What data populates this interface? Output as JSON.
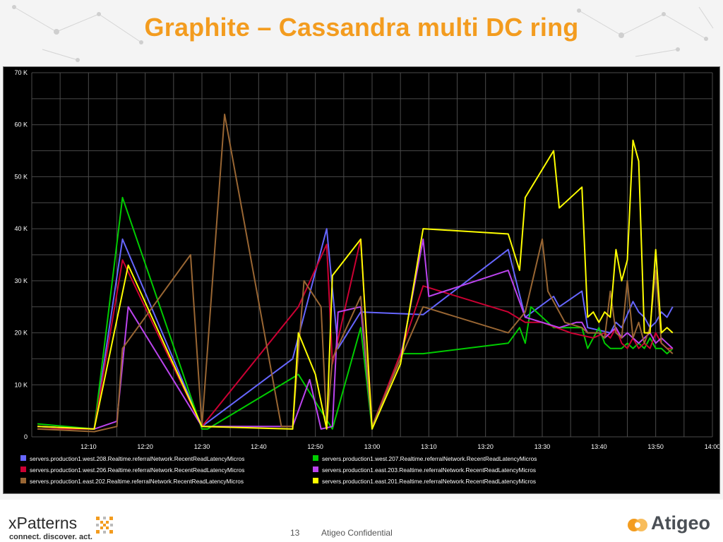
{
  "slide": {
    "title": "Graphite – Cassandra multi DC ring",
    "page_number": "13",
    "confidential": "Atigeo Confidential",
    "brand_left": {
      "name": "xPatterns",
      "tagline": "connect. discover. act."
    },
    "brand_right": {
      "name": "Atigeo"
    },
    "colors": {
      "title": "#f39c1f",
      "chart_bg": "#000000",
      "grid": "#4a4a4a"
    }
  },
  "chart_data": {
    "type": "line",
    "title": "",
    "xlabel": "",
    "ylabel": "",
    "x_ticks": [
      "12:10",
      "12:20",
      "12:30",
      "12:40",
      "12:50",
      "13:00",
      "13:10",
      "13:20",
      "13:30",
      "13:40",
      "13:50",
      "14:00"
    ],
    "y_ticks": [
      "0",
      "10 K",
      "20 K",
      "30 K",
      "40 K",
      "50 K",
      "60 K",
      "70 K"
    ],
    "xlim": [
      "12:00",
      "14:00"
    ],
    "ylim": [
      0,
      70000
    ],
    "grid": true,
    "legend_position": "bottom",
    "series": [
      {
        "name": "servers.production1.west.208.Realtime.referralNetwork.RecentReadLatencyMicros",
        "color": "#6666ff",
        "points": [
          [
            "12:01",
            2000
          ],
          [
            "12:11",
            1500
          ],
          [
            "12:16",
            38000
          ],
          [
            "12:30",
            2000
          ],
          [
            "12:46",
            15000
          ],
          [
            "12:52",
            40000
          ],
          [
            "12:54",
            17000
          ],
          [
            "12:58",
            24000
          ],
          [
            "13:09",
            23500
          ],
          [
            "13:24",
            36000
          ],
          [
            "13:27",
            23000
          ],
          [
            "13:32",
            27000
          ],
          [
            "13:33",
            25000
          ],
          [
            "13:37",
            28000
          ],
          [
            "13:38",
            21000
          ],
          [
            "13:42",
            20000
          ],
          [
            "13:43",
            22000
          ],
          [
            "13:44",
            21000
          ],
          [
            "13:46",
            26000
          ],
          [
            "13:47",
            24000
          ],
          [
            "13:48",
            23000
          ],
          [
            "13:49",
            21000
          ],
          [
            "13:50",
            22000
          ],
          [
            "13:51",
            24000
          ],
          [
            "13:52",
            23000
          ],
          [
            "13:53",
            25000
          ]
        ]
      },
      {
        "name": "servers.production1.west.207.Realtime.referralNetwork.RecentReadLatencyMicros",
        "color": "#00cc00",
        "points": [
          [
            "12:01",
            2500
          ],
          [
            "12:11",
            1500
          ],
          [
            "12:16",
            46000
          ],
          [
            "12:30",
            1500
          ],
          [
            "12:31",
            1500
          ],
          [
            "12:47",
            12000
          ],
          [
            "12:53",
            1500
          ],
          [
            "12:58",
            21000
          ],
          [
            "13:00",
            1500
          ],
          [
            "13:05",
            16000
          ],
          [
            "13:09",
            16000
          ],
          [
            "13:24",
            18000
          ],
          [
            "13:26",
            21000
          ],
          [
            "13:27",
            18000
          ],
          [
            "13:28",
            25000
          ],
          [
            "13:32",
            21000
          ],
          [
            "13:37",
            21000
          ],
          [
            "13:38",
            17000
          ],
          [
            "13:39",
            19000
          ],
          [
            "13:40",
            21000
          ],
          [
            "13:41",
            18000
          ],
          [
            "13:42",
            17000
          ],
          [
            "13:43",
            17000
          ],
          [
            "13:44",
            17000
          ],
          [
            "13:45",
            18000
          ],
          [
            "13:46",
            17000
          ],
          [
            "13:47",
            18000
          ],
          [
            "13:48",
            17000
          ],
          [
            "13:49",
            19000
          ],
          [
            "13:50",
            17000
          ],
          [
            "13:51",
            17000
          ],
          [
            "13:52",
            16000
          ],
          [
            "13:53",
            17000
          ]
        ]
      },
      {
        "name": "servers.production1.west.206.Realtime.referralNetwork.RecentReadLatencyMicros",
        "color": "#cc0033",
        "points": [
          [
            "12:01",
            1500
          ],
          [
            "12:11",
            1500
          ],
          [
            "12:16",
            34000
          ],
          [
            "12:30",
            2000
          ],
          [
            "12:47",
            25000
          ],
          [
            "12:52",
            37000
          ],
          [
            "12:53",
            14000
          ],
          [
            "12:58",
            38000
          ],
          [
            "13:00",
            2000
          ],
          [
            "13:05",
            16000
          ],
          [
            "13:09",
            29000
          ],
          [
            "13:24",
            24000
          ],
          [
            "13:27",
            22000
          ],
          [
            "13:30",
            22000
          ],
          [
            "13:35",
            20000
          ],
          [
            "13:39",
            19000
          ],
          [
            "13:41",
            20000
          ],
          [
            "13:42",
            19000
          ],
          [
            "13:43",
            21000
          ],
          [
            "13:44",
            18000
          ],
          [
            "13:45",
            17000
          ],
          [
            "13:46",
            19000
          ],
          [
            "13:47",
            17000
          ],
          [
            "13:48",
            18000
          ],
          [
            "13:49",
            17000
          ],
          [
            "13:50",
            20000
          ],
          [
            "13:51",
            18000
          ],
          [
            "13:52",
            17000
          ],
          [
            "13:53",
            17000
          ]
        ]
      },
      {
        "name": "servers.production1.east.203.Realtime.referralNetwork.RecentReadLatencyMicros",
        "color": "#bb44ee",
        "points": [
          [
            "12:01",
            2000
          ],
          [
            "12:11",
            1500
          ],
          [
            "12:15",
            3000
          ],
          [
            "12:17",
            25000
          ],
          [
            "12:30",
            2000
          ],
          [
            "12:46",
            2000
          ],
          [
            "12:49",
            11000
          ],
          [
            "12:51",
            1500
          ],
          [
            "12:53",
            2000
          ],
          [
            "12:54",
            24000
          ],
          [
            "12:58",
            25000
          ],
          [
            "13:00",
            2000
          ],
          [
            "13:05",
            15000
          ],
          [
            "13:09",
            38000
          ],
          [
            "13:10",
            27000
          ],
          [
            "13:24",
            32000
          ],
          [
            "13:27",
            23000
          ],
          [
            "13:30",
            22000
          ],
          [
            "13:33",
            21000
          ],
          [
            "13:36",
            22000
          ],
          [
            "13:37",
            22000
          ],
          [
            "13:38",
            20000
          ],
          [
            "13:40",
            20000
          ],
          [
            "13:41",
            19000
          ],
          [
            "13:42",
            20000
          ],
          [
            "13:43",
            21000
          ],
          [
            "13:44",
            19000
          ],
          [
            "13:45",
            20000
          ],
          [
            "13:46",
            19000
          ],
          [
            "13:47",
            18000
          ],
          [
            "13:48",
            19000
          ],
          [
            "13:49",
            20000
          ],
          [
            "13:50",
            18000
          ],
          [
            "13:51",
            19000
          ],
          [
            "13:52",
            18000
          ],
          [
            "13:53",
            17000
          ]
        ]
      },
      {
        "name": "servers.production1.east.202.Realtime.referralNetwork.RecentReadLatencyMicros",
        "color": "#996633",
        "points": [
          [
            "12:01",
            1500
          ],
          [
            "12:11",
            1000
          ],
          [
            "12:15",
            2000
          ],
          [
            "12:16",
            17000
          ],
          [
            "12:28",
            35000
          ],
          [
            "12:30",
            2000
          ],
          [
            "12:34",
            62000
          ],
          [
            "12:44",
            2000
          ],
          [
            "12:46",
            2000
          ],
          [
            "12:48",
            30000
          ],
          [
            "12:51",
            25000
          ],
          [
            "12:52",
            2000
          ],
          [
            "12:53",
            15000
          ],
          [
            "12:58",
            27000
          ],
          [
            "13:00",
            2000
          ],
          [
            "13:05",
            15000
          ],
          [
            "13:09",
            25000
          ],
          [
            "13:24",
            20000
          ],
          [
            "13:27",
            24000
          ],
          [
            "13:30",
            38000
          ],
          [
            "13:31",
            28000
          ],
          [
            "13:34",
            22000
          ],
          [
            "13:37",
            21000
          ],
          [
            "13:38",
            20000
          ],
          [
            "13:40",
            20000
          ],
          [
            "13:41",
            19000
          ],
          [
            "13:42",
            28000
          ],
          [
            "13:43",
            20000
          ],
          [
            "13:44",
            19000
          ],
          [
            "13:45",
            30000
          ],
          [
            "13:46",
            19000
          ],
          [
            "13:47",
            22000
          ],
          [
            "13:48",
            18000
          ],
          [
            "13:49",
            21000
          ],
          [
            "13:50",
            32000
          ],
          [
            "13:51",
            18000
          ],
          [
            "13:52",
            17000
          ],
          [
            "13:53",
            16000
          ]
        ]
      },
      {
        "name": "servers.production1.east.201.Realtime.referralNetwork.RecentReadLatencyMicros",
        "color": "#ffff00",
        "points": [
          [
            "12:01",
            2000
          ],
          [
            "12:11",
            1500
          ],
          [
            "12:17",
            33000
          ],
          [
            "12:30",
            2000
          ],
          [
            "12:46",
            1500
          ],
          [
            "12:47",
            20000
          ],
          [
            "12:50",
            12000
          ],
          [
            "12:52",
            1500
          ],
          [
            "12:53",
            31000
          ],
          [
            "12:58",
            38000
          ],
          [
            "13:00",
            1500
          ],
          [
            "13:05",
            14000
          ],
          [
            "13:09",
            40000
          ],
          [
            "13:24",
            39000
          ],
          [
            "13:26",
            32000
          ],
          [
            "13:27",
            46000
          ],
          [
            "13:32",
            55000
          ],
          [
            "13:33",
            44000
          ],
          [
            "13:37",
            48000
          ],
          [
            "13:38",
            23000
          ],
          [
            "13:39",
            24000
          ],
          [
            "13:40",
            22000
          ],
          [
            "13:41",
            24000
          ],
          [
            "13:42",
            23000
          ],
          [
            "13:43",
            36000
          ],
          [
            "13:44",
            30000
          ],
          [
            "13:45",
            34000
          ],
          [
            "13:46",
            57000
          ],
          [
            "13:47",
            53000
          ],
          [
            "13:48",
            20000
          ],
          [
            "13:49",
            20000
          ],
          [
            "13:50",
            36000
          ],
          [
            "13:51",
            20000
          ],
          [
            "13:52",
            21000
          ],
          [
            "13:53",
            20000
          ]
        ]
      }
    ]
  }
}
